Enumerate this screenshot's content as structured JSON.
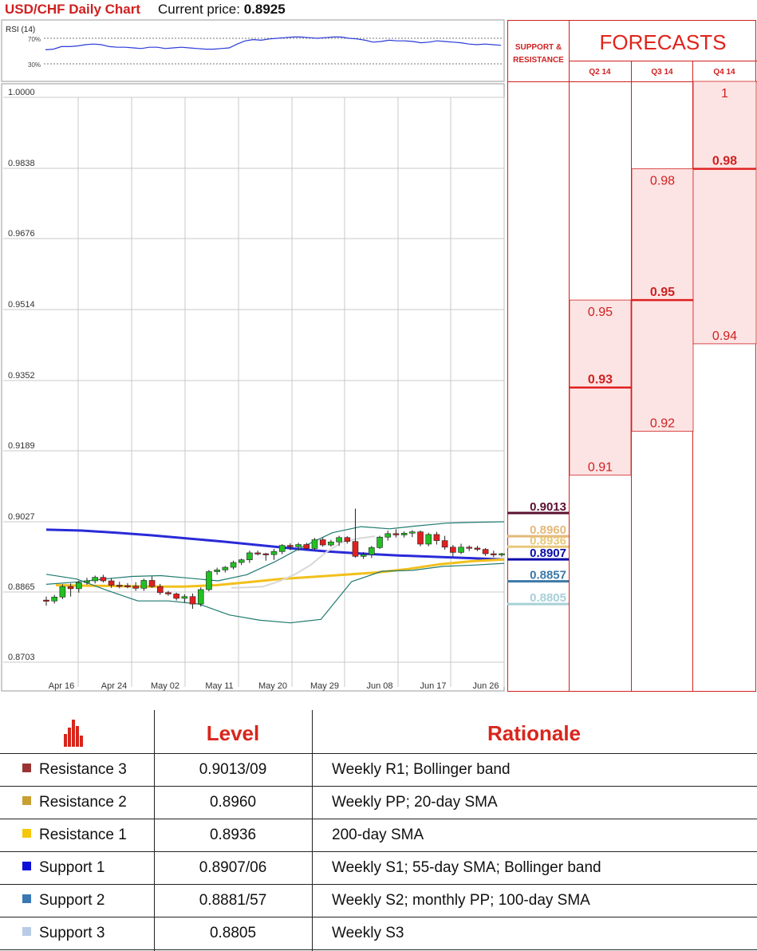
{
  "header": {
    "title": "USD/CHF Daily Chart",
    "price_label": "Current price:",
    "price_value": "0.8925"
  },
  "rsi": {
    "label": "RSI (14)",
    "level_high": "70%",
    "level_low": "30%",
    "values": [
      52,
      53,
      57,
      57,
      58,
      60,
      61,
      60,
      57,
      56,
      56,
      55,
      54,
      56,
      56,
      54,
      55,
      56,
      55,
      54,
      53,
      53,
      54,
      55,
      61,
      66,
      68,
      67,
      69,
      70,
      71,
      72,
      72,
      71,
      70,
      71,
      72,
      72,
      70,
      69,
      67,
      64,
      65,
      67,
      66,
      66,
      65,
      63,
      64,
      66,
      65,
      64,
      63,
      61,
      60,
      61,
      60,
      59
    ]
  },
  "chart_data": {
    "type": "candlestick",
    "title": "USD/CHF Daily Chart",
    "y_ticks": [
      "1.0000",
      "0.9838",
      "0.9676",
      "0.9514",
      "0.9352",
      "0.9189",
      "0.9027",
      "0.8865",
      "0.8703"
    ],
    "ylim": [
      0.8703,
      1.0
    ],
    "x_ticks": [
      "Apr 16",
      "Apr 24",
      "May 02",
      "May 11",
      "May 20",
      "May 29",
      "Jun 08",
      "Jun 17",
      "Jun 26"
    ],
    "candles": [
      [
        0.8814,
        0.8822,
        0.8801,
        0.8812
      ],
      [
        0.8812,
        0.8826,
        0.8806,
        0.8821
      ],
      [
        0.8821,
        0.885,
        0.8816,
        0.8845
      ],
      [
        0.8845,
        0.8852,
        0.8822,
        0.884
      ],
      [
        0.884,
        0.8858,
        0.8831,
        0.8854
      ],
      [
        0.8854,
        0.8865,
        0.8849,
        0.8858
      ],
      [
        0.8858,
        0.887,
        0.8852,
        0.8866
      ],
      [
        0.8866,
        0.8872,
        0.8854,
        0.8858
      ],
      [
        0.8858,
        0.8864,
        0.8842,
        0.8848
      ],
      [
        0.8848,
        0.8856,
        0.8841,
        0.8847
      ],
      [
        0.8847,
        0.8853,
        0.8841,
        0.8846
      ],
      [
        0.8846,
        0.8855,
        0.8835,
        0.8841
      ],
      [
        0.8841,
        0.8863,
        0.8835,
        0.8859
      ],
      [
        0.8859,
        0.8868,
        0.8842,
        0.8845
      ],
      [
        0.8845,
        0.8851,
        0.8826,
        0.8831
      ],
      [
        0.8831,
        0.8835,
        0.8824,
        0.8828
      ],
      [
        0.8828,
        0.8831,
        0.8813,
        0.8818
      ],
      [
        0.8818,
        0.8827,
        0.8808,
        0.8822
      ],
      [
        0.8822,
        0.8829,
        0.8794,
        0.8805
      ],
      [
        0.8805,
        0.8843,
        0.8799,
        0.8838
      ],
      [
        0.8838,
        0.8883,
        0.8834,
        0.8879
      ],
      [
        0.8879,
        0.8888,
        0.8872,
        0.8883
      ],
      [
        0.8883,
        0.8892,
        0.8877,
        0.8889
      ],
      [
        0.8889,
        0.8904,
        0.8884,
        0.89
      ],
      [
        0.89,
        0.8909,
        0.8894,
        0.8906
      ],
      [
        0.8906,
        0.8927,
        0.8899,
        0.8922
      ],
      [
        0.8922,
        0.8927,
        0.8916,
        0.892
      ],
      [
        0.892,
        0.8922,
        0.8904,
        0.8918
      ],
      [
        0.8918,
        0.8931,
        0.8906,
        0.8925
      ],
      [
        0.8925,
        0.8942,
        0.8919,
        0.8939
      ],
      [
        0.8939,
        0.8944,
        0.8928,
        0.8936
      ],
      [
        0.8936,
        0.8945,
        0.8927,
        0.8941
      ],
      [
        0.8941,
        0.8945,
        0.893,
        0.8932
      ],
      [
        0.8932,
        0.8956,
        0.8928,
        0.8952
      ],
      [
        0.8952,
        0.8957,
        0.8936,
        0.894
      ],
      [
        0.894,
        0.8952,
        0.8936,
        0.8947
      ],
      [
        0.8947,
        0.8961,
        0.8938,
        0.8957
      ],
      [
        0.8957,
        0.896,
        0.8943,
        0.8948
      ],
      [
        0.8948,
        0.9023,
        0.8911,
        0.8914
      ],
      [
        0.8914,
        0.8924,
        0.8908,
        0.8918
      ],
      [
        0.8918,
        0.8938,
        0.891,
        0.8934
      ],
      [
        0.8934,
        0.8961,
        0.8931,
        0.8958
      ],
      [
        0.8958,
        0.8973,
        0.895,
        0.8966
      ],
      [
        0.8966,
        0.8976,
        0.8957,
        0.8963
      ],
      [
        0.8963,
        0.8971,
        0.8957,
        0.8967
      ],
      [
        0.8967,
        0.8974,
        0.8958,
        0.897
      ],
      [
        0.897,
        0.8973,
        0.8937,
        0.8942
      ],
      [
        0.8942,
        0.8968,
        0.8937,
        0.8964
      ],
      [
        0.8964,
        0.897,
        0.8941,
        0.895
      ],
      [
        0.895,
        0.8961,
        0.8929,
        0.8935
      ],
      [
        0.8935,
        0.894,
        0.8914,
        0.8923
      ],
      [
        0.8923,
        0.8943,
        0.8919,
        0.8935
      ],
      [
        0.8935,
        0.8939,
        0.8926,
        0.8933
      ],
      [
        0.8933,
        0.8938,
        0.8926,
        0.893
      ],
      [
        0.893,
        0.8933,
        0.8915,
        0.892
      ],
      [
        0.892,
        0.8927,
        0.8912,
        0.8918
      ],
      [
        0.8918,
        0.8922,
        0.8913,
        0.892
      ]
    ],
    "series": [
      {
        "kind": "sma",
        "color": "#2a2ad8",
        "values": [
          0.8975,
          0.8973,
          0.8968,
          0.8962,
          0.8955,
          0.8948,
          0.894,
          0.8932,
          0.8925,
          0.892,
          0.8916,
          0.8913,
          0.891,
          0.8907
        ]
      },
      {
        "kind": "sma",
        "color": "#f2c01c",
        "values": [
          0.8848,
          0.8847,
          0.8846,
          0.8845,
          0.8845,
          0.8848,
          0.8855,
          0.8862,
          0.8867,
          0.8872,
          0.8877,
          0.8885,
          0.8896,
          0.8903,
          0.8907
        ]
      },
      {
        "kind": "bollinger-upper",
        "color": "#207a70",
        "values": [
          0.885,
          0.8855,
          0.8862,
          0.8868,
          0.887,
          0.8864,
          0.8858,
          0.8872,
          0.8902,
          0.8937,
          0.8968,
          0.8982,
          0.8977,
          0.8984,
          0.899,
          0.8992,
          0.8993
        ]
      },
      {
        "kind": "bollinger-lower",
        "color": "#207a70",
        "values": [
          0.8873,
          0.8862,
          0.8836,
          0.8812,
          0.8812,
          0.8805,
          0.878,
          0.8768,
          0.8762,
          0.877,
          0.8856,
          0.888,
          0.8882,
          0.8891,
          0.8894,
          0.8898
        ]
      },
      {
        "kind": "sma-light",
        "color": "#d8d8d8",
        "values": [
          0.8842,
          0.8843,
          0.8845,
          0.8857,
          0.8873,
          0.8895,
          0.8925,
          0.8947,
          0.8955,
          0.896
        ]
      }
    ]
  },
  "support_resistance": {
    "heading_line1": "SUPPORT &",
    "heading_line2": "RESISTANCE",
    "levels": [
      {
        "value": "0.9013",
        "price": 0.9013,
        "color": "#5c1030"
      },
      {
        "value": "0.8960",
        "price": 0.896,
        "color": "#e3b97a"
      },
      {
        "value": "0.8936",
        "price": 0.8936,
        "color": "#e7c87a"
      },
      {
        "value": "0.8907",
        "price": 0.8907,
        "color": "#0a0aa8"
      },
      {
        "value": "0.8857",
        "price": 0.8857,
        "color": "#3b78a8"
      },
      {
        "value": "0.8805",
        "price": 0.8805,
        "color": "#a8d0d8"
      }
    ]
  },
  "forecasts": {
    "title": "FORECASTS",
    "columns": [
      {
        "label": "Q2 14",
        "high": "0.95",
        "mid": "0.93",
        "low": "0.91",
        "high_v": 0.95,
        "mid_v": 0.93,
        "low_v": 0.91
      },
      {
        "label": "Q3 14",
        "high": "0.98",
        "mid": "0.95",
        "low": "0.92",
        "high_v": 0.98,
        "mid_v": 0.95,
        "low_v": 0.92
      },
      {
        "label": "Q4 14",
        "high": "1",
        "mid": "0.98",
        "low": "0.94",
        "high_v": 1.0,
        "mid_v": 0.98,
        "low_v": 0.94
      }
    ]
  },
  "table": {
    "col_level": "Level",
    "col_rationale": "Rationale",
    "rows": [
      {
        "name": "Resistance 3",
        "level": "0.9013/09",
        "rationale": "Weekly R1; Bollinger band",
        "color": "#9a3434"
      },
      {
        "name": "Resistance 2",
        "level": "0.8960",
        "rationale": "Weekly PP; 20-day SMA",
        "color": "#c8a032"
      },
      {
        "name": "Resistance 1",
        "level": "0.8936",
        "rationale": "200-day SMA",
        "color": "#f5c70a"
      },
      {
        "name": "Support 1",
        "level": "0.8907/06",
        "rationale": "Weekly S1; 55-day SMA; Bollinger band",
        "color": "#0c10d8"
      },
      {
        "name": "Support 2",
        "level": "0.8881/57",
        "rationale": "Weekly S2; monthly PP; 100-day SMA",
        "color": "#3a78b4"
      },
      {
        "name": "Support 3",
        "level": "0.8805",
        "rationale": "Weekly S3",
        "color": "#b8cce8"
      }
    ]
  }
}
